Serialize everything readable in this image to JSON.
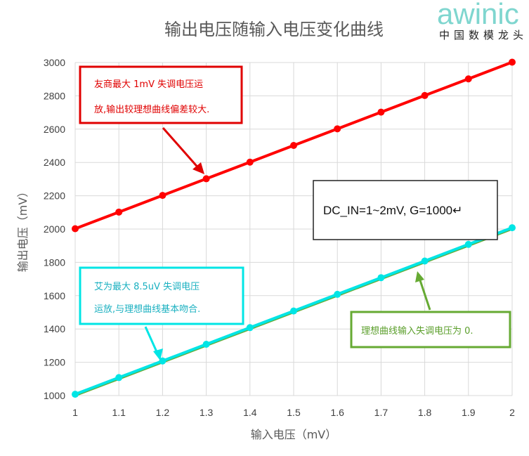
{
  "logo": {
    "name": "awinic",
    "subtitle": "中国数模龙头"
  },
  "chart_data": {
    "type": "line",
    "title": "输出电压随输入电压变化曲线",
    "xlabel": "输入电压（mV）",
    "ylabel": "输出电压（mV）",
    "x": [
      1,
      1.1,
      1.2,
      1.3,
      1.4,
      1.5,
      1.6,
      1.7,
      1.8,
      1.9,
      2
    ],
    "x_tick_labels": [
      "1",
      "1.1",
      "1.2",
      "1.3",
      "1.4",
      "1.5",
      "1.6",
      "1.7",
      "1.8",
      "1.9",
      "2"
    ],
    "y_ticks": [
      1000,
      1200,
      1400,
      1600,
      1800,
      2000,
      2200,
      2400,
      2600,
      2800,
      3000
    ],
    "xlim": [
      1,
      2
    ],
    "ylim": [
      1000,
      3000
    ],
    "grid": true,
    "series": [
      {
        "color": "#ff0000",
        "values": [
          2002,
          2102,
          2202,
          2302,
          2402,
          2502,
          2602,
          2702,
          2802,
          2902,
          3002
        ]
      },
      {
        "color": "#00e5e5",
        "values": [
          1008,
          1108,
          1208,
          1308,
          1408,
          1508,
          1608,
          1708,
          1808,
          1908,
          2008
        ]
      },
      {
        "color": "#66aa33",
        "values": [
          1000,
          1100,
          1200,
          1300,
          1400,
          1500,
          1600,
          1700,
          1800,
          1900,
          2000
        ]
      }
    ],
    "annotations": {
      "red_note": [
        "友商最大 1mV 失调电压运",
        "放,输出较理想曲线偏差较大."
      ],
      "cyan_note": [
        "艾为最大 8.5uV 失调电压",
        "运放,与理想曲线基本吻合."
      ],
      "green_note": "理想曲线输入失调电压为 0.",
      "condition": "DC_IN=1~2mV, G=1000↵"
    },
    "colors": {
      "red": "#e00000",
      "cyan": "#00e5e5",
      "green": "#66aa33",
      "gridline": "#d9d9d9"
    }
  }
}
